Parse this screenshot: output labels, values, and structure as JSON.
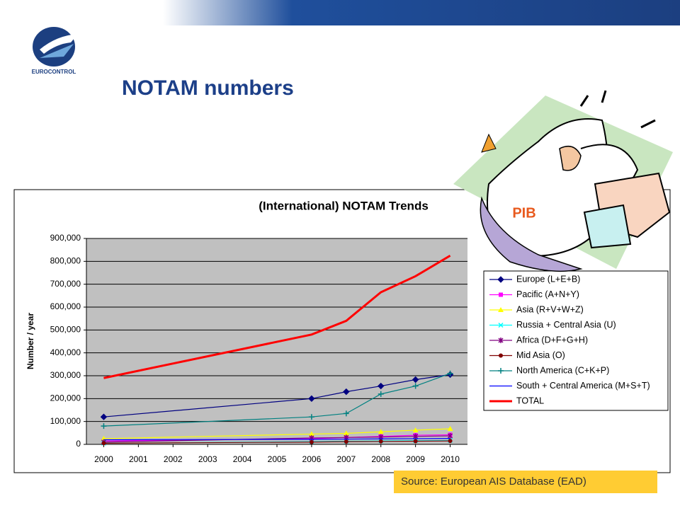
{
  "header": {
    "logo_text": "EUROCONTROL",
    "title": "NOTAM numbers"
  },
  "illustration": {
    "label": "PIB"
  },
  "source": "Source: European AIS Database (EAD)",
  "chart_data": {
    "type": "line",
    "title": "(International) NOTAM Trends",
    "y_label": "Number / year",
    "x": [
      2000,
      2006,
      2007,
      2008,
      2009,
      2010
    ],
    "xlim": [
      1999.5,
      2010.5
    ],
    "xticks": [
      2000,
      2001,
      2002,
      2003,
      2004,
      2005,
      2006,
      2007,
      2008,
      2009,
      2010
    ],
    "ylim": [
      0,
      900000
    ],
    "yticks": [
      0,
      {
        "value": 100000,
        "label": "100,000"
      },
      {
        "value": 200000,
        "label": "200,000"
      },
      {
        "value": 300000,
        "label": "300,000"
      },
      {
        "value": 400000,
        "label": "400,000"
      },
      {
        "value": 500000,
        "label": "500,000"
      },
      {
        "value": 600000,
        "label": "600,000"
      },
      {
        "value": 700000,
        "label": "700,000"
      },
      {
        "value": 800000,
        "label": "800,000"
      },
      {
        "value": 900000,
        "label": "900,000"
      }
    ],
    "grid": true,
    "legend": "right",
    "series": [
      {
        "name": "Europe (L+E+B)",
        "color": "#000080",
        "marker": "diamond",
        "values": [
          120000,
          200000,
          230000,
          255000,
          283000,
          305000
        ]
      },
      {
        "name": "Pacific (A+N+Y)",
        "color": "#ff00ff",
        "marker": "square",
        "values": [
          15000,
          25000,
          30000,
          35000,
          40000,
          42000
        ]
      },
      {
        "name": "Asia (R+V+W+Z)",
        "color": "#ffff00",
        "marker": "triangle",
        "values": [
          25000,
          45000,
          48000,
          55000,
          62000,
          68000
        ]
      },
      {
        "name": "Russia + Central Asia (U)",
        "color": "#00ffff",
        "marker": "x",
        "values": [
          5000,
          12000,
          14000,
          15000,
          16000,
          17000
        ]
      },
      {
        "name": "Africa (D+F+G+H)",
        "color": "#800080",
        "marker": "star",
        "values": [
          10000,
          28000,
          30000,
          32000,
          35000,
          37000
        ]
      },
      {
        "name": "Mid Asia (O)",
        "color": "#800000",
        "marker": "circle",
        "values": [
          5000,
          10000,
          12000,
          13000,
          14000,
          15000
        ]
      },
      {
        "name": "North America (C+K+P)",
        "color": "#008080",
        "marker": "plus",
        "values": [
          80000,
          120000,
          135000,
          220000,
          255000,
          310000
        ]
      },
      {
        "name": "South + Central America (M+S+T)",
        "color": "#0000ff",
        "marker": "none",
        "values": [
          20000,
          22000,
          23000,
          24000,
          25000,
          26000
        ]
      },
      {
        "name": "TOTAL",
        "color": "#ff0000",
        "marker": "none",
        "width": 3,
        "values": [
          290000,
          480000,
          540000,
          665000,
          735000,
          825000
        ]
      }
    ]
  }
}
